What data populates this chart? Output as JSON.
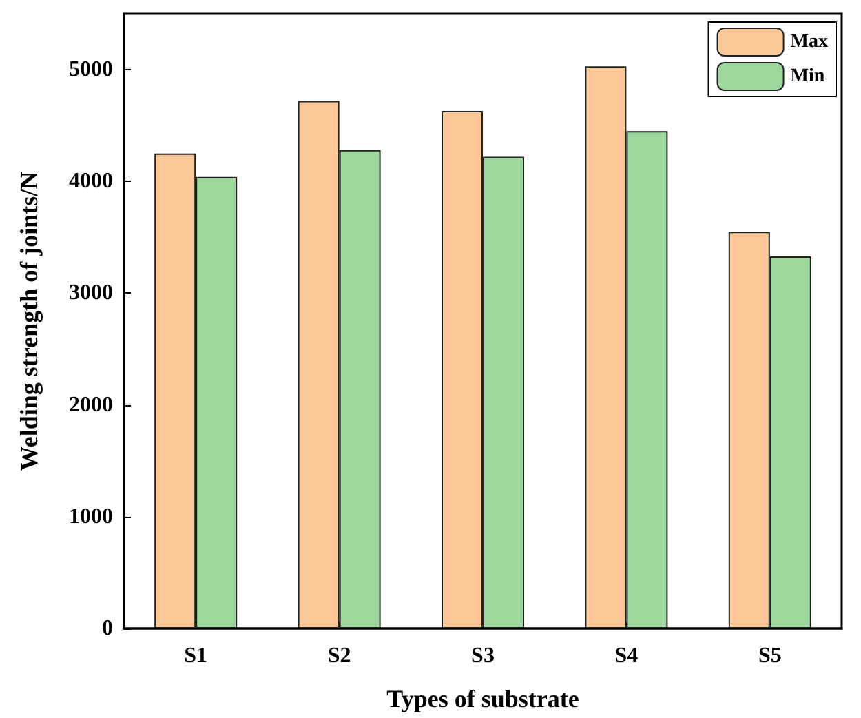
{
  "chart_data": {
    "type": "bar",
    "xlabel": "Types of substrate",
    "ylabel": "Welding strength of joints/N",
    "categories": [
      "S1",
      "S2",
      "S3",
      "S4",
      "S5"
    ],
    "series": [
      {
        "name": "Max",
        "color": "#fdc898",
        "values": [
          4250,
          4720,
          4630,
          5030,
          3550
        ]
      },
      {
        "name": "Min",
        "color": "#9dd79b",
        "values": [
          4040,
          4280,
          4220,
          4450,
          3330
        ]
      }
    ],
    "ylim": [
      0,
      5500
    ],
    "yticks": [
      0,
      1000,
      2000,
      3000,
      4000,
      5000
    ],
    "grid": false,
    "legend": "top right"
  }
}
